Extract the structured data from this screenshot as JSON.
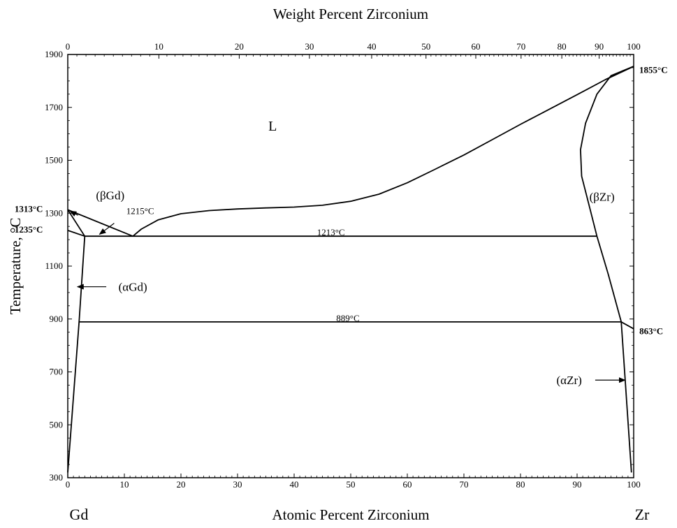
{
  "chart_data": {
    "type": "line",
    "title": "Weight Percent Zirconium",
    "xlabel": "Atomic Percent Zirconium",
    "ylabel": "Temperature, °C",
    "x_range": [
      0,
      100
    ],
    "y_range": [
      300,
      1900
    ],
    "left_component": "Gd",
    "right_component": "Zr",
    "x_ticks": [
      0,
      10,
      20,
      30,
      40,
      50,
      60,
      70,
      80,
      90,
      100
    ],
    "y_ticks": [
      300,
      500,
      700,
      900,
      1100,
      1300,
      1500,
      1700,
      1900
    ],
    "top_axis_ticks": [
      {
        "label": "0",
        "at_pct": 0
      },
      {
        "label": "10",
        "at_pct": 16.1
      },
      {
        "label": "20",
        "at_pct": 30.3
      },
      {
        "label": "30",
        "at_pct": 42.7
      },
      {
        "label": "40",
        "at_pct": 53.7
      },
      {
        "label": "50",
        "at_pct": 63.3
      },
      {
        "label": "60",
        "at_pct": 72.1
      },
      {
        "label": "70",
        "at_pct": 80.1
      },
      {
        "label": "80",
        "at_pct": 87.3
      },
      {
        "label": "90",
        "at_pct": 93.9
      },
      {
        "label": "100",
        "at_pct": 100
      }
    ],
    "series": [
      {
        "points": [
          [
            11.5,
            1213
          ],
          [
            13,
            1240
          ],
          [
            16,
            1275
          ],
          [
            20,
            1298
          ],
          [
            25,
            1310
          ],
          [
            30,
            1316
          ],
          [
            35,
            1320
          ],
          [
            40,
            1323
          ],
          [
            45,
            1330
          ],
          [
            50,
            1345
          ],
          [
            55,
            1372
          ],
          [
            60,
            1415
          ],
          [
            65,
            1467
          ],
          [
            70,
            1520
          ],
          [
            75,
            1578
          ],
          [
            80,
            1636
          ],
          [
            85,
            1692
          ],
          [
            90,
            1748
          ],
          [
            95,
            1805
          ],
          [
            100,
            1855
          ]
        ]
      },
      {
        "points": [
          [
            0,
            1313
          ],
          [
            11.5,
            1213
          ]
        ]
      },
      {
        "points": [
          [
            100,
            1855
          ],
          [
            96,
            1820
          ],
          [
            93.5,
            1750
          ],
          [
            91.5,
            1640
          ],
          [
            90.6,
            1540
          ],
          [
            90.8,
            1440
          ],
          [
            92,
            1340
          ],
          [
            93.5,
            1213
          ],
          [
            95.5,
            1070
          ],
          [
            97.8,
            889
          ],
          [
            100,
            863
          ]
        ]
      },
      {
        "points": [
          [
            0,
            1235
          ],
          [
            3,
            1213
          ]
        ]
      },
      {
        "points": [
          [
            0,
            1313
          ],
          [
            3,
            1213
          ]
        ]
      },
      {
        "points": [
          [
            3,
            1213
          ],
          [
            2,
            889
          ],
          [
            0,
            320
          ]
        ]
      },
      {
        "points": [
          [
            97.8,
            889
          ],
          [
            99.6,
            320
          ]
        ]
      },
      {
        "points": [
          [
            3,
            1213
          ],
          [
            93.5,
            1213
          ]
        ]
      },
      {
        "points": [
          [
            2,
            889
          ],
          [
            97.8,
            889
          ]
        ]
      }
    ],
    "annotations": [
      {
        "text": "L",
        "x": 36.2,
        "y": 1625,
        "style": "phase-big"
      },
      {
        "text": "(βGd)",
        "x": 7.5,
        "y": 1363,
        "style": "phase"
      },
      {
        "text": "(βZr)",
        "x": 94.4,
        "y": 1357,
        "style": "phase"
      },
      {
        "text": "(αGd)",
        "x": 11.5,
        "y": 1017,
        "style": "phase"
      },
      {
        "text": "(αZr)",
        "x": 88.6,
        "y": 664,
        "style": "phase"
      },
      {
        "text": "1215°C",
        "x": 12.8,
        "y": 1304,
        "style": "temp"
      },
      {
        "text": "1213°C",
        "x": 46.5,
        "y": 1224,
        "style": "temp"
      },
      {
        "text": "889°C",
        "x": 49.5,
        "y": 899,
        "style": "temp"
      },
      {
        "text": "1313°C",
        "x": -6.9,
        "y": 1313,
        "style": "bold"
      },
      {
        "text": "1235°C",
        "x": -6.9,
        "y": 1235,
        "style": "bold"
      },
      {
        "text": "1855°C",
        "x": 103.5,
        "y": 1838,
        "style": "bold"
      },
      {
        "text": "863°C",
        "x": 103.1,
        "y": 850,
        "style": "bold"
      }
    ],
    "arrows": [
      {
        "from": [
          1.8,
          1292
        ],
        "to": [
          0.4,
          1308
        ]
      },
      {
        "from": [
          8.2,
          1262
        ],
        "to": [
          5.6,
          1220
        ]
      },
      {
        "from": [
          6.8,
          1022
        ],
        "to": [
          1.7,
          1022
        ]
      },
      {
        "from": [
          93.2,
          669
        ],
        "to": [
          98.5,
          669
        ]
      }
    ]
  }
}
